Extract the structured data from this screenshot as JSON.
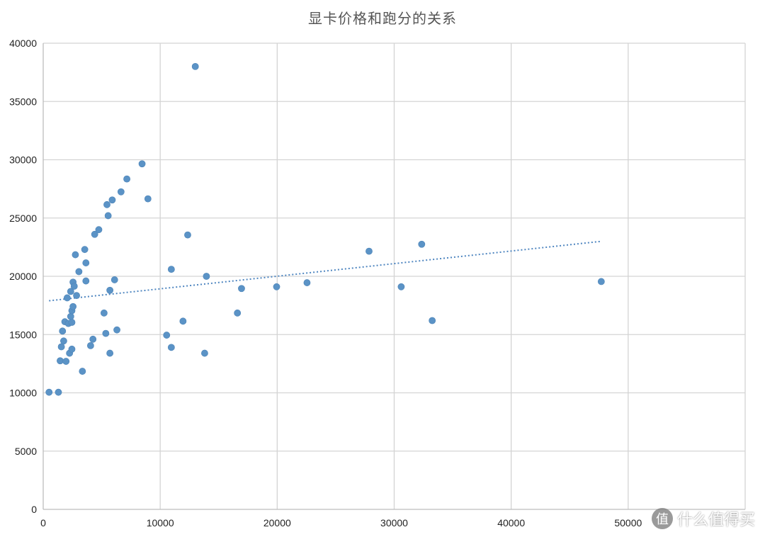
{
  "chart_data": {
    "type": "scatter",
    "title": "显卡价格和跑分的关系",
    "xlabel": "",
    "ylabel": "",
    "xlim": [
      0,
      60000
    ],
    "ylim": [
      0,
      40000
    ],
    "x_ticks": [
      0,
      10000,
      20000,
      30000,
      40000,
      50000
    ],
    "y_ticks": [
      0,
      5000,
      10000,
      15000,
      20000,
      25000,
      30000,
      35000,
      40000
    ],
    "grid": true,
    "legend": "none",
    "colors": {
      "point": "#5b93c6",
      "trendline": "#4f86c0",
      "grid": "#d4d4d4"
    },
    "trendline": {
      "type": "linear",
      "x": [
        500,
        47700
      ],
      "y": [
        17900,
        23000
      ]
    },
    "series": [
      {
        "points": [
          [
            500,
            10050
          ],
          [
            1300,
            10050
          ],
          [
            1450,
            12750
          ],
          [
            1550,
            13950
          ],
          [
            1650,
            15300
          ],
          [
            1750,
            14450
          ],
          [
            1850,
            16100
          ],
          [
            1950,
            12700
          ],
          [
            2050,
            18150
          ],
          [
            2150,
            15950
          ],
          [
            2250,
            13400
          ],
          [
            2350,
            18700
          ],
          [
            2350,
            16550
          ],
          [
            2450,
            13750
          ],
          [
            2450,
            16050
          ],
          [
            2450,
            17050
          ],
          [
            2550,
            17400
          ],
          [
            2550,
            19500
          ],
          [
            2650,
            19150
          ],
          [
            2750,
            21850
          ],
          [
            2850,
            18350
          ],
          [
            3050,
            20400
          ],
          [
            3350,
            11850
          ],
          [
            3550,
            22300
          ],
          [
            3650,
            21150
          ],
          [
            3650,
            19600
          ],
          [
            4050,
            14050
          ],
          [
            4250,
            14600
          ],
          [
            4400,
            23600
          ],
          [
            4750,
            24000
          ],
          [
            5200,
            16850
          ],
          [
            5350,
            15100
          ],
          [
            5450,
            26150
          ],
          [
            5550,
            25200
          ],
          [
            5700,
            18800
          ],
          [
            5700,
            13400
          ],
          [
            5900,
            26550
          ],
          [
            6100,
            19700
          ],
          [
            6300,
            15400
          ],
          [
            6650,
            27250
          ],
          [
            7150,
            28350
          ],
          [
            8450,
            29650
          ],
          [
            8950,
            26650
          ],
          [
            10550,
            14950
          ],
          [
            10950,
            20600
          ],
          [
            10950,
            13900
          ],
          [
            11950,
            16150
          ],
          [
            12350,
            23550
          ],
          [
            13000,
            38000
          ],
          [
            13800,
            13400
          ],
          [
            13950,
            20000
          ],
          [
            16600,
            16850
          ],
          [
            16950,
            18950
          ],
          [
            19950,
            19100
          ],
          [
            22550,
            19450
          ],
          [
            27850,
            22150
          ],
          [
            30600,
            19100
          ],
          [
            32350,
            22750
          ],
          [
            33250,
            16200
          ],
          [
            47700,
            19550
          ]
        ]
      }
    ]
  },
  "watermark": {
    "badge": "值",
    "text": "什么值得买"
  }
}
